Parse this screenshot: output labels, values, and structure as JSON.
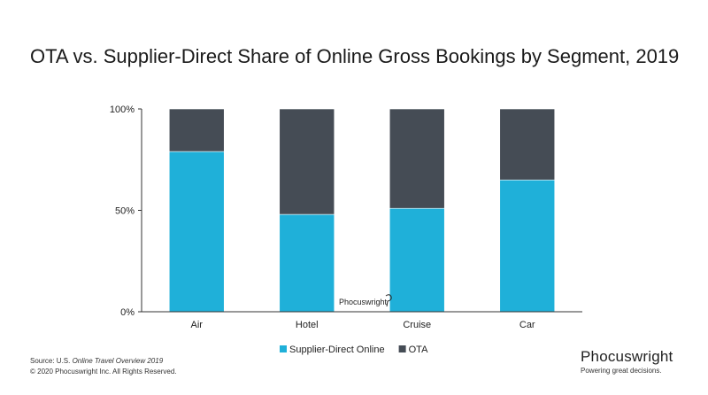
{
  "title": "OTA vs. Supplier-Direct Share of Online Gross Bookings by Segment, 2019",
  "source": {
    "prefix": "Source: U.S. ",
    "report": "Online Travel Overview 2019",
    "copyright": "© 2020  Phocuswright Inc. All Rights Reserved."
  },
  "brand": {
    "name": "Phocuswright",
    "tagline": "Powering great decisions."
  },
  "watermark": "Phocuswright",
  "colors": {
    "supplier": "#1fb0d9",
    "ota": "#454c55",
    "axis": "#333333"
  },
  "chart_data": {
    "type": "bar",
    "stacked": true,
    "categories": [
      "Air",
      "Hotel",
      "Cruise",
      "Car"
    ],
    "series": [
      {
        "name": "Supplier-Direct Online",
        "values": [
          79,
          48,
          51,
          65
        ]
      },
      {
        "name": "OTA",
        "values": [
          21,
          52,
          49,
          35
        ]
      }
    ],
    "ylim": [
      0,
      100
    ],
    "yticks": [
      0,
      50,
      100
    ],
    "ytick_labels": [
      "0%",
      "50%",
      "100%"
    ],
    "legend_position": "bottom",
    "grid": false
  }
}
